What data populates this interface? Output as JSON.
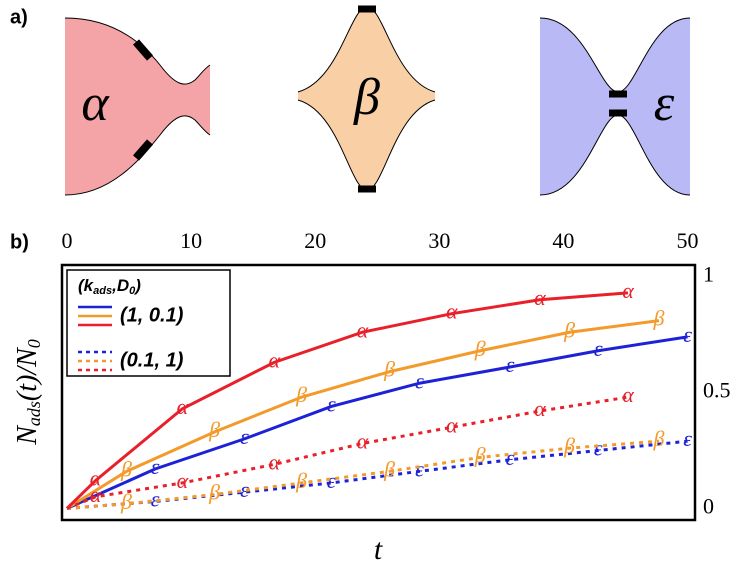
{
  "panel_a": {
    "label": "a)",
    "shapes": [
      "α",
      "β",
      "ε"
    ]
  },
  "chart_data": {
    "type": "line",
    "panel_label": "b)",
    "xlabel": "t",
    "ylabel": [
      "N",
      "ads",
      "(t)/N",
      "0"
    ],
    "xlim": [
      -0.4,
      50.6
    ],
    "xticks": [
      0,
      10,
      20,
      30,
      40,
      50
    ],
    "ylim": [
      -0.05,
      1.05
    ],
    "yticks": [
      0,
      0.5,
      1
    ],
    "legend": {
      "title": [
        "(k",
        "ads",
        ",D",
        "0",
        ")"
      ],
      "entries": [
        {
          "label": "(1, 0.1)",
          "dash": false
        },
        {
          "label": "(0.1, 1)",
          "dash": true
        }
      ]
    },
    "series": [
      {
        "marker": "ε",
        "color": "#1e22d6",
        "dash": false,
        "x": [
          0,
          7.1,
          14.3,
          21.3,
          28.4,
          35.7,
          42.8,
          50
        ],
        "values": [
          0,
          0.17,
          0.3,
          0.44,
          0.54,
          0.61,
          0.68,
          0.74
        ]
      },
      {
        "marker": "β",
        "color": "#f39a2a",
        "dash": false,
        "x": [
          0,
          4.8,
          11.9,
          18.9,
          26,
          33.3,
          40.5,
          47.7
        ],
        "values": [
          0,
          0.16,
          0.33,
          0.48,
          0.59,
          0.68,
          0.76,
          0.81
        ]
      },
      {
        "marker": "α",
        "color": "#e8202a",
        "dash": false,
        "x": [
          0,
          2.3,
          9.3,
          16.7,
          23.8,
          31,
          38.1,
          45.2
        ],
        "values": [
          0,
          0.12,
          0.43,
          0.63,
          0.76,
          0.84,
          0.9,
          0.93
        ]
      },
      {
        "marker": "ε",
        "color": "#1e22d6",
        "dash": true,
        "x": [
          0,
          7.1,
          14.3,
          21.3,
          28.4,
          35.7,
          42.8,
          50
        ],
        "values": [
          0,
          0.03,
          0.07,
          0.11,
          0.16,
          0.21,
          0.25,
          0.29
        ]
      },
      {
        "marker": "β",
        "color": "#f39a2a",
        "dash": true,
        "x": [
          0,
          4.8,
          11.9,
          18.9,
          26,
          33.3,
          40.5,
          47.7
        ],
        "values": [
          0,
          0.02,
          0.06,
          0.11,
          0.16,
          0.22,
          0.26,
          0.29
        ]
      },
      {
        "marker": "α",
        "color": "#e8202a",
        "dash": true,
        "x": [
          0,
          2.3,
          9.3,
          16.7,
          23.8,
          31,
          38.1,
          45.2
        ],
        "values": [
          0,
          0.05,
          0.11,
          0.19,
          0.28,
          0.35,
          0.42,
          0.48
        ]
      }
    ]
  }
}
